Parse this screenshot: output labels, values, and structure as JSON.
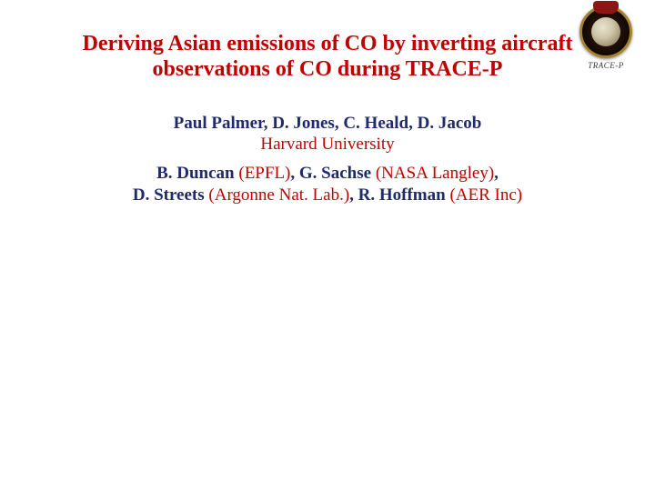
{
  "logo": {
    "caption": "TRACE-P"
  },
  "title": "Deriving Asian emissions of CO by inverting aircraft observations of CO during TRACE-P",
  "authors": {
    "primary": "Paul Palmer, D. Jones, C. Heald, D. Jacob",
    "primary_affiliation": "Harvard University",
    "secondary": [
      {
        "name": "B. Duncan",
        "aff": "(EPFL)"
      },
      {
        "name": "G. Sachse",
        "aff": "(NASA Langley)"
      },
      {
        "name": "D. Streets",
        "aff": "(Argonne Nat. Lab.)"
      },
      {
        "name": "R. Hoffman",
        "aff": "(AER Inc)"
      }
    ]
  },
  "colors": {
    "title_color": "#c00000",
    "name_color": "#1f2a6b",
    "aff_color": "#c00000",
    "background": "#ffffff"
  },
  "typography": {
    "title_fontsize": 24,
    "body_fontsize": 19,
    "font_family": "Times New Roman"
  }
}
